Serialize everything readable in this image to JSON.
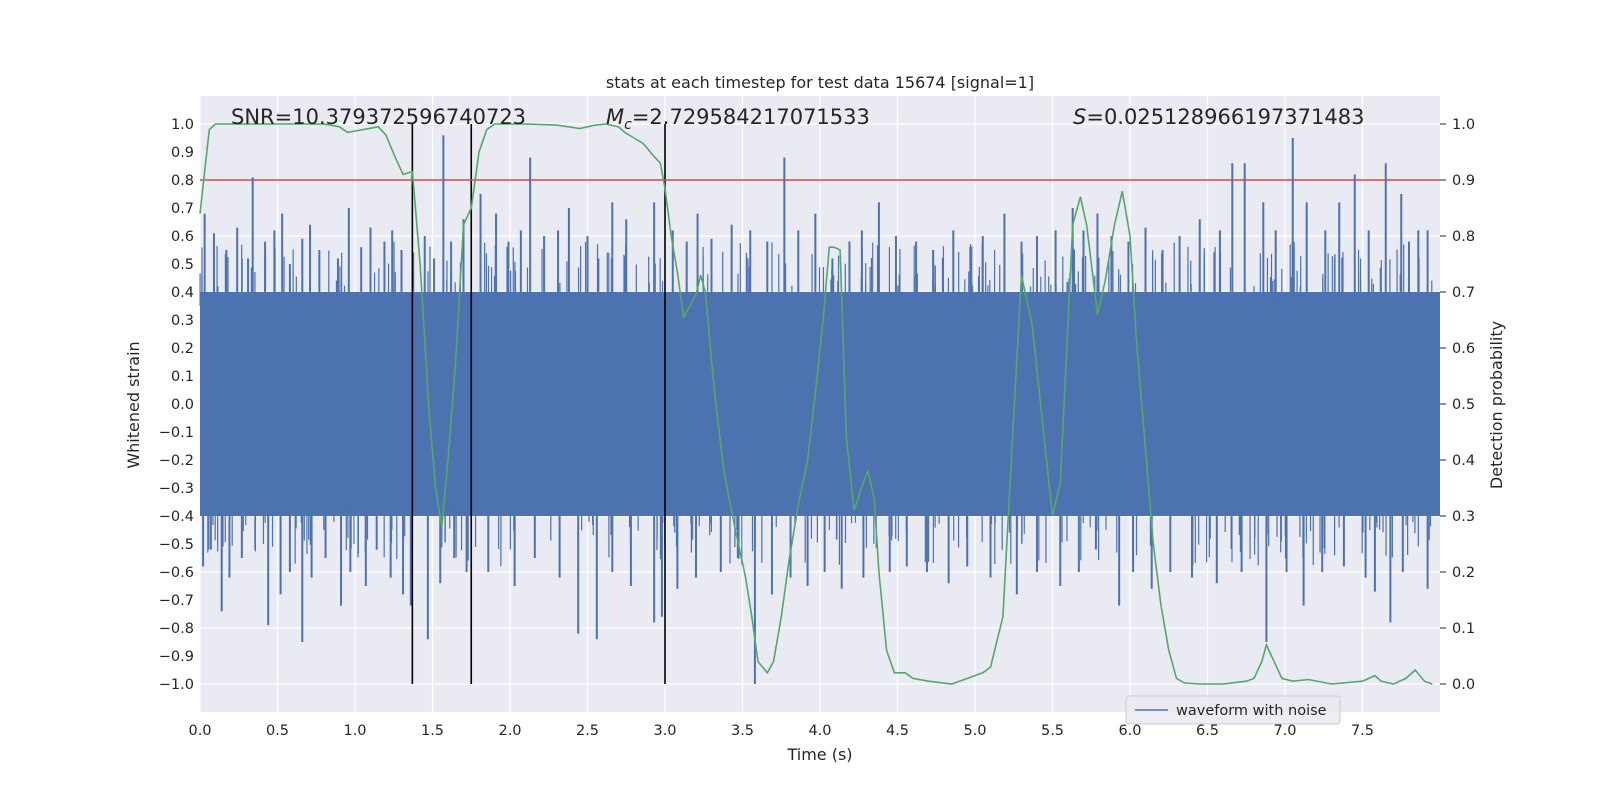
{
  "chart_data": {
    "type": "line",
    "title": "stats at each timestep for test data 15674 [signal=1]",
    "xlabel": "Time (s)",
    "ylabel": "Whitened strain",
    "y2label": "Detection probability",
    "xlim": [
      0.0,
      8.0
    ],
    "ylim": [
      -1.1,
      1.1
    ],
    "y2lim": [
      -0.05,
      1.05
    ],
    "grid": true,
    "x_ticks": [
      "0.0",
      "0.5",
      "1.0",
      "1.5",
      "2.0",
      "2.5",
      "3.0",
      "3.5",
      "4.0",
      "4.5",
      "5.0",
      "5.5",
      "6.0",
      "6.5",
      "7.0",
      "7.5"
    ],
    "y_ticks": [
      "1.0",
      "0.9",
      "0.8",
      "0.7",
      "0.6",
      "0.5",
      "0.4",
      "0.3",
      "0.2",
      "0.1",
      "0.0",
      "−0.1",
      "−0.2",
      "−0.3",
      "−0.4",
      "−0.5",
      "−0.6",
      "−0.7",
      "−0.8",
      "−0.9",
      "−1.0"
    ],
    "y2_ticks": [
      "1.0",
      "0.9",
      "0.8",
      "0.7",
      "0.6",
      "0.5",
      "0.4",
      "0.3",
      "0.2",
      "0.1",
      "0.0"
    ],
    "annotations": {
      "snr": "SNR=10.379372596740723",
      "mc_symbol": "M",
      "mc_sub": "c",
      "mc_value": "=2.729584217071533",
      "s_symbol": "S",
      "s_value": "=0.025128966197371483"
    },
    "threshold": {
      "y2": 0.9,
      "color": "#c44e52"
    },
    "vertical_lines": {
      "x": [
        1.37,
        1.75,
        3.0
      ],
      "ymin": -1.0,
      "ymax": 1.0,
      "color": "#000000"
    },
    "waveform": {
      "name": "waveform with noise",
      "color": "#4c72b0",
      "band_upper": 0.4,
      "band_lower": -0.4,
      "spikes_up": [
        [
          0.03,
          0.68
        ],
        [
          0.09,
          0.61
        ],
        [
          0.17,
          0.55
        ],
        [
          0.24,
          0.63
        ],
        [
          0.31,
          0.52
        ],
        [
          0.34,
          0.81
        ],
        [
          0.42,
          0.58
        ],
        [
          0.48,
          0.62
        ],
        [
          0.53,
          0.68
        ],
        [
          0.58,
          0.5
        ],
        [
          0.66,
          0.59
        ],
        [
          0.71,
          0.64
        ],
        [
          0.77,
          0.55
        ],
        [
          0.89,
          0.52
        ],
        [
          0.96,
          0.7
        ],
        [
          1.04,
          0.56
        ],
        [
          1.1,
          0.63
        ],
        [
          1.19,
          0.58
        ],
        [
          1.24,
          0.62
        ],
        [
          1.3,
          0.55
        ],
        [
          1.45,
          0.6
        ],
        [
          1.51,
          0.52
        ],
        [
          1.57,
          0.96
        ],
        [
          1.62,
          0.58
        ],
        [
          1.7,
          0.66
        ],
        [
          1.81,
          0.75
        ],
        [
          1.91,
          0.68
        ],
        [
          1.99,
          0.58
        ],
        [
          2.07,
          0.62
        ],
        [
          2.13,
          0.88
        ],
        [
          2.22,
          0.6
        ],
        [
          2.31,
          0.62
        ],
        [
          2.38,
          0.7
        ],
        [
          2.5,
          0.6
        ],
        [
          2.57,
          0.52
        ],
        [
          2.66,
          0.72
        ],
        [
          2.75,
          0.66
        ],
        [
          2.93,
          0.72
        ],
        [
          3.05,
          0.62
        ],
        [
          3.14,
          0.58
        ],
        [
          3.21,
          0.68
        ],
        [
          3.3,
          0.59
        ],
        [
          3.43,
          0.64
        ],
        [
          3.55,
          0.62
        ],
        [
          3.66,
          0.58
        ],
        [
          3.77,
          0.88
        ],
        [
          3.86,
          0.62
        ],
        [
          3.97,
          0.68
        ],
        [
          4.08,
          0.52
        ],
        [
          4.19,
          0.58
        ],
        [
          4.27,
          0.62
        ],
        [
          4.38,
          0.72
        ],
        [
          4.49,
          0.6
        ],
        [
          4.62,
          0.58
        ],
        [
          4.73,
          0.55
        ],
        [
          4.86,
          0.62
        ],
        [
          4.97,
          0.56
        ],
        [
          5.05,
          0.6
        ],
        [
          5.19,
          0.68
        ],
        [
          5.3,
          0.58
        ],
        [
          5.4,
          0.6
        ],
        [
          5.52,
          0.62
        ],
        [
          5.63,
          0.7
        ],
        [
          5.7,
          0.62
        ],
        [
          5.79,
          0.68
        ],
        [
          5.88,
          0.6
        ],
        [
          5.99,
          0.58
        ],
        [
          6.1,
          0.63
        ],
        [
          6.21,
          0.55
        ],
        [
          6.32,
          0.6
        ],
        [
          6.45,
          0.66
        ],
        [
          6.58,
          0.62
        ],
        [
          6.66,
          0.86
        ],
        [
          6.74,
          0.86
        ],
        [
          6.86,
          0.72
        ],
        [
          6.94,
          0.62
        ],
        [
          7.05,
          0.95
        ],
        [
          7.14,
          0.72
        ],
        [
          7.26,
          0.62
        ],
        [
          7.35,
          0.72
        ],
        [
          7.45,
          0.82
        ],
        [
          7.54,
          0.62
        ],
        [
          7.65,
          0.86
        ],
        [
          7.75,
          0.75
        ],
        [
          7.8,
          0.58
        ],
        [
          7.86,
          0.62
        ],
        [
          7.92,
          0.62
        ]
      ],
      "spikes_down": [
        [
          0.02,
          -0.58
        ],
        [
          0.07,
          -0.52
        ],
        [
          0.14,
          -0.74
        ],
        [
          0.19,
          -0.62
        ],
        [
          0.27,
          -0.55
        ],
        [
          0.44,
          -0.79
        ],
        [
          0.52,
          -0.68
        ],
        [
          0.58,
          -0.6
        ],
        [
          0.66,
          -0.85
        ],
        [
          0.72,
          -0.62
        ],
        [
          0.81,
          -0.55
        ],
        [
          0.91,
          -0.72
        ],
        [
          0.97,
          -0.6
        ],
        [
          1.07,
          -0.65
        ],
        [
          1.14,
          -0.52
        ],
        [
          1.23,
          -0.62
        ],
        [
          1.31,
          -0.68
        ],
        [
          1.36,
          -0.72
        ],
        [
          1.47,
          -0.84
        ],
        [
          1.55,
          -0.64
        ],
        [
          1.64,
          -0.55
        ],
        [
          1.72,
          -0.6
        ],
        [
          1.86,
          -0.6
        ],
        [
          2.03,
          -0.65
        ],
        [
          2.16,
          -0.55
        ],
        [
          2.32,
          -0.62
        ],
        [
          2.44,
          -0.82
        ],
        [
          2.56,
          -0.84
        ],
        [
          2.66,
          -0.6
        ],
        [
          2.78,
          -0.65
        ],
        [
          2.93,
          -0.78
        ],
        [
          2.98,
          -0.76
        ],
        [
          3.08,
          -0.66
        ],
        [
          3.2,
          -0.62
        ],
        [
          3.36,
          -0.6
        ],
        [
          3.47,
          -0.55
        ],
        [
          3.58,
          -1.0
        ],
        [
          3.69,
          -0.68
        ],
        [
          3.81,
          -0.62
        ],
        [
          3.92,
          -0.65
        ],
        [
          4.03,
          -0.6
        ],
        [
          4.14,
          -0.66
        ],
        [
          4.28,
          -0.62
        ],
        [
          4.45,
          -0.6
        ],
        [
          4.56,
          -0.58
        ],
        [
          4.69,
          -0.6
        ],
        [
          4.83,
          -0.64
        ],
        [
          4.95,
          -0.58
        ],
        [
          5.1,
          -0.62
        ],
        [
          5.27,
          -0.68
        ],
        [
          5.4,
          -0.6
        ],
        [
          5.55,
          -0.65
        ],
        [
          5.67,
          -0.6
        ],
        [
          5.78,
          -0.52
        ],
        [
          5.93,
          -0.72
        ],
        [
          6.02,
          -0.6
        ],
        [
          6.14,
          -0.66
        ],
        [
          6.26,
          -0.6
        ],
        [
          6.4,
          -0.62
        ],
        [
          6.56,
          -0.64
        ],
        [
          6.72,
          -0.6
        ],
        [
          6.88,
          -0.85
        ],
        [
          7.01,
          -0.6
        ],
        [
          7.12,
          -0.72
        ],
        [
          7.24,
          -0.6
        ],
        [
          7.38,
          -0.58
        ],
        [
          7.52,
          -0.62
        ],
        [
          7.58,
          -0.67
        ],
        [
          7.68,
          -0.78
        ],
        [
          7.76,
          -0.6
        ],
        [
          7.92,
          -0.66
        ]
      ]
    },
    "detection_probability": {
      "color": "#55a868",
      "points": [
        [
          0.0,
          0.84
        ],
        [
          0.06,
          0.99
        ],
        [
          0.1,
          1.0
        ],
        [
          0.2,
          1.0
        ],
        [
          0.5,
          1.0
        ],
        [
          0.8,
          1.0
        ],
        [
          0.9,
          0.995
        ],
        [
          0.95,
          0.985
        ],
        [
          1.05,
          0.99
        ],
        [
          1.15,
          0.995
        ],
        [
          1.2,
          0.98
        ],
        [
          1.26,
          0.94
        ],
        [
          1.31,
          0.91
        ],
        [
          1.37,
          0.915
        ],
        [
          1.42,
          0.75
        ],
        [
          1.48,
          0.48
        ],
        [
          1.52,
          0.35
        ],
        [
          1.56,
          0.28
        ],
        [
          1.6,
          0.4
        ],
        [
          1.65,
          0.58
        ],
        [
          1.7,
          0.82
        ],
        [
          1.75,
          0.85
        ],
        [
          1.8,
          0.95
        ],
        [
          1.85,
          0.99
        ],
        [
          1.9,
          1.0
        ],
        [
          2.1,
          1.0
        ],
        [
          2.3,
          0.998
        ],
        [
          2.45,
          0.992
        ],
        [
          2.55,
          0.998
        ],
        [
          2.62,
          1.0
        ],
        [
          2.7,
          0.995
        ],
        [
          2.74,
          0.985
        ],
        [
          2.8,
          0.975
        ],
        [
          2.86,
          0.965
        ],
        [
          2.92,
          0.945
        ],
        [
          2.97,
          0.93
        ],
        [
          3.0,
          0.885
        ],
        [
          3.04,
          0.8
        ],
        [
          3.08,
          0.735
        ],
        [
          3.12,
          0.655
        ],
        [
          3.15,
          0.67
        ],
        [
          3.2,
          0.695
        ],
        [
          3.23,
          0.73
        ],
        [
          3.26,
          0.7
        ],
        [
          3.32,
          0.52
        ],
        [
          3.38,
          0.38
        ],
        [
          3.45,
          0.28
        ],
        [
          3.52,
          0.19
        ],
        [
          3.56,
          0.12
        ],
        [
          3.6,
          0.04
        ],
        [
          3.66,
          0.02
        ],
        [
          3.7,
          0.04
        ],
        [
          3.75,
          0.12
        ],
        [
          3.8,
          0.22
        ],
        [
          3.86,
          0.32
        ],
        [
          3.92,
          0.4
        ],
        [
          3.97,
          0.52
        ],
        [
          4.02,
          0.65
        ],
        [
          4.06,
          0.78
        ],
        [
          4.09,
          0.78
        ],
        [
          4.13,
          0.775
        ],
        [
          4.17,
          0.44
        ],
        [
          4.22,
          0.31
        ],
        [
          4.28,
          0.36
        ],
        [
          4.31,
          0.38
        ],
        [
          4.35,
          0.33
        ],
        [
          4.38,
          0.2
        ],
        [
          4.43,
          0.06
        ],
        [
          4.48,
          0.02
        ],
        [
          4.55,
          0.02
        ],
        [
          4.6,
          0.01
        ],
        [
          4.7,
          0.005
        ],
        [
          4.85,
          0.0
        ],
        [
          4.95,
          0.01
        ],
        [
          5.05,
          0.02
        ],
        [
          5.1,
          0.03
        ],
        [
          5.18,
          0.12
        ],
        [
          5.23,
          0.38
        ],
        [
          5.3,
          0.73
        ],
        [
          5.37,
          0.64
        ],
        [
          5.43,
          0.48
        ],
        [
          5.5,
          0.3
        ],
        [
          5.55,
          0.36
        ],
        [
          5.63,
          0.82
        ],
        [
          5.68,
          0.87
        ],
        [
          5.72,
          0.82
        ],
        [
          5.79,
          0.66
        ],
        [
          5.84,
          0.72
        ],
        [
          5.9,
          0.82
        ],
        [
          5.95,
          0.88
        ],
        [
          6.0,
          0.8
        ],
        [
          6.04,
          0.62
        ],
        [
          6.1,
          0.42
        ],
        [
          6.15,
          0.25
        ],
        [
          6.2,
          0.14
        ],
        [
          6.25,
          0.06
        ],
        [
          6.3,
          0.01
        ],
        [
          6.35,
          0.002
        ],
        [
          6.45,
          0.0
        ],
        [
          6.6,
          0.0
        ],
        [
          6.75,
          0.005
        ],
        [
          6.8,
          0.01
        ],
        [
          6.85,
          0.04
        ],
        [
          6.88,
          0.07
        ],
        [
          6.93,
          0.04
        ],
        [
          6.98,
          0.01
        ],
        [
          7.05,
          0.005
        ],
        [
          7.15,
          0.008
        ],
        [
          7.3,
          0.0
        ],
        [
          7.5,
          0.005
        ],
        [
          7.58,
          0.015
        ],
        [
          7.62,
          0.005
        ],
        [
          7.7,
          0.0
        ],
        [
          7.78,
          0.01
        ],
        [
          7.84,
          0.025
        ],
        [
          7.9,
          0.005
        ],
        [
          7.95,
          0.0
        ]
      ]
    },
    "legend": {
      "entries": [
        "waveform with noise"
      ],
      "placement": "lower-right"
    }
  }
}
